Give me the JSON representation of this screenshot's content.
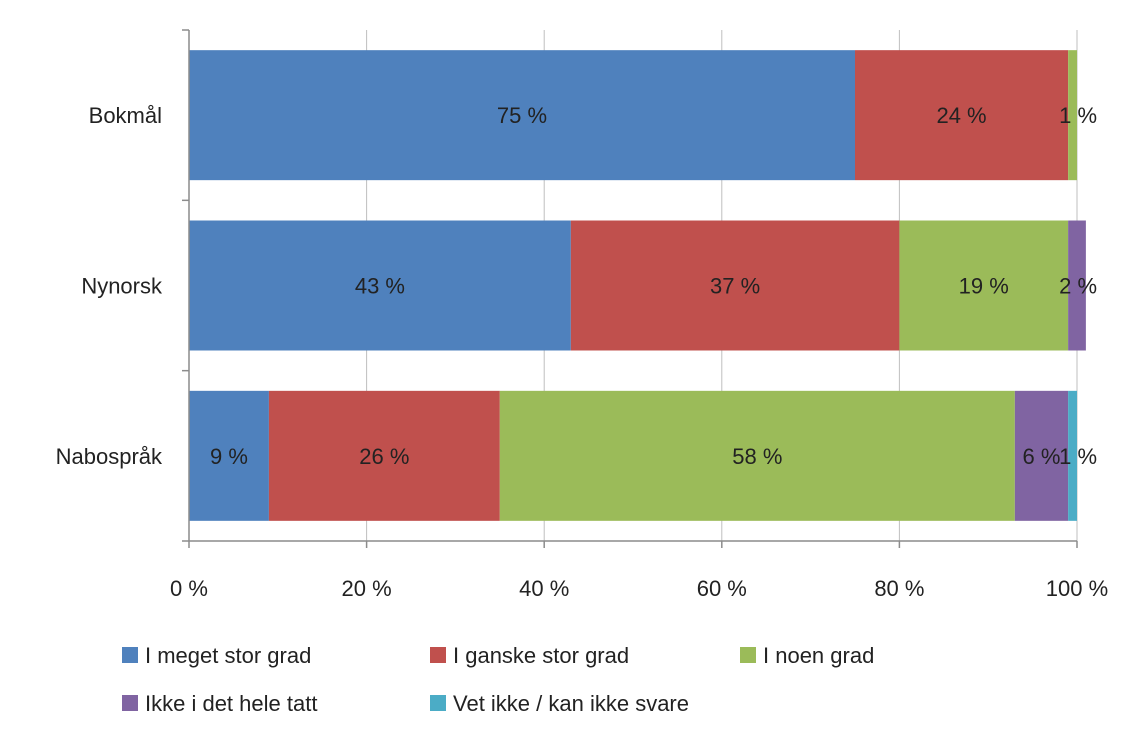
{
  "chart_data": {
    "type": "bar",
    "orientation": "horizontal",
    "stacked": "percent",
    "categories": [
      "Bokmål",
      "Nynorsk",
      "Nabospråk"
    ],
    "series": [
      {
        "name": "I meget stor grad",
        "color": "#4f81bd",
        "values": [
          75,
          43,
          9
        ],
        "labels": [
          "75 %",
          "43 %",
          "9 %"
        ]
      },
      {
        "name": "I ganske stor grad",
        "color": "#c0504d",
        "values": [
          24,
          37,
          26
        ],
        "labels": [
          "24 %",
          "37 %",
          "26 %"
        ]
      },
      {
        "name": "I noen grad",
        "color": "#9bbb59",
        "values": [
          1,
          19,
          58
        ],
        "labels": [
          "1 %",
          "19 %",
          "58 %"
        ]
      },
      {
        "name": "Ikke i det hele tatt",
        "color": "#8064a2",
        "values": [
          0,
          2,
          6
        ],
        "labels": [
          "",
          "2 %",
          "6 %"
        ]
      },
      {
        "name": "Vet ikke / kan ikke svare",
        "color": "#4bacc6",
        "values": [
          0,
          0,
          1
        ],
        "labels": [
          "",
          "",
          "1 %"
        ]
      }
    ],
    "xlim": [
      0,
      100
    ],
    "x_ticks": [
      0,
      20,
      40,
      60,
      80,
      100
    ],
    "x_tick_labels": [
      "0 %",
      "20 %",
      "40 %",
      "60 %",
      "80 %",
      "100 %"
    ],
    "grid": "vertical",
    "legend": "bottom"
  }
}
